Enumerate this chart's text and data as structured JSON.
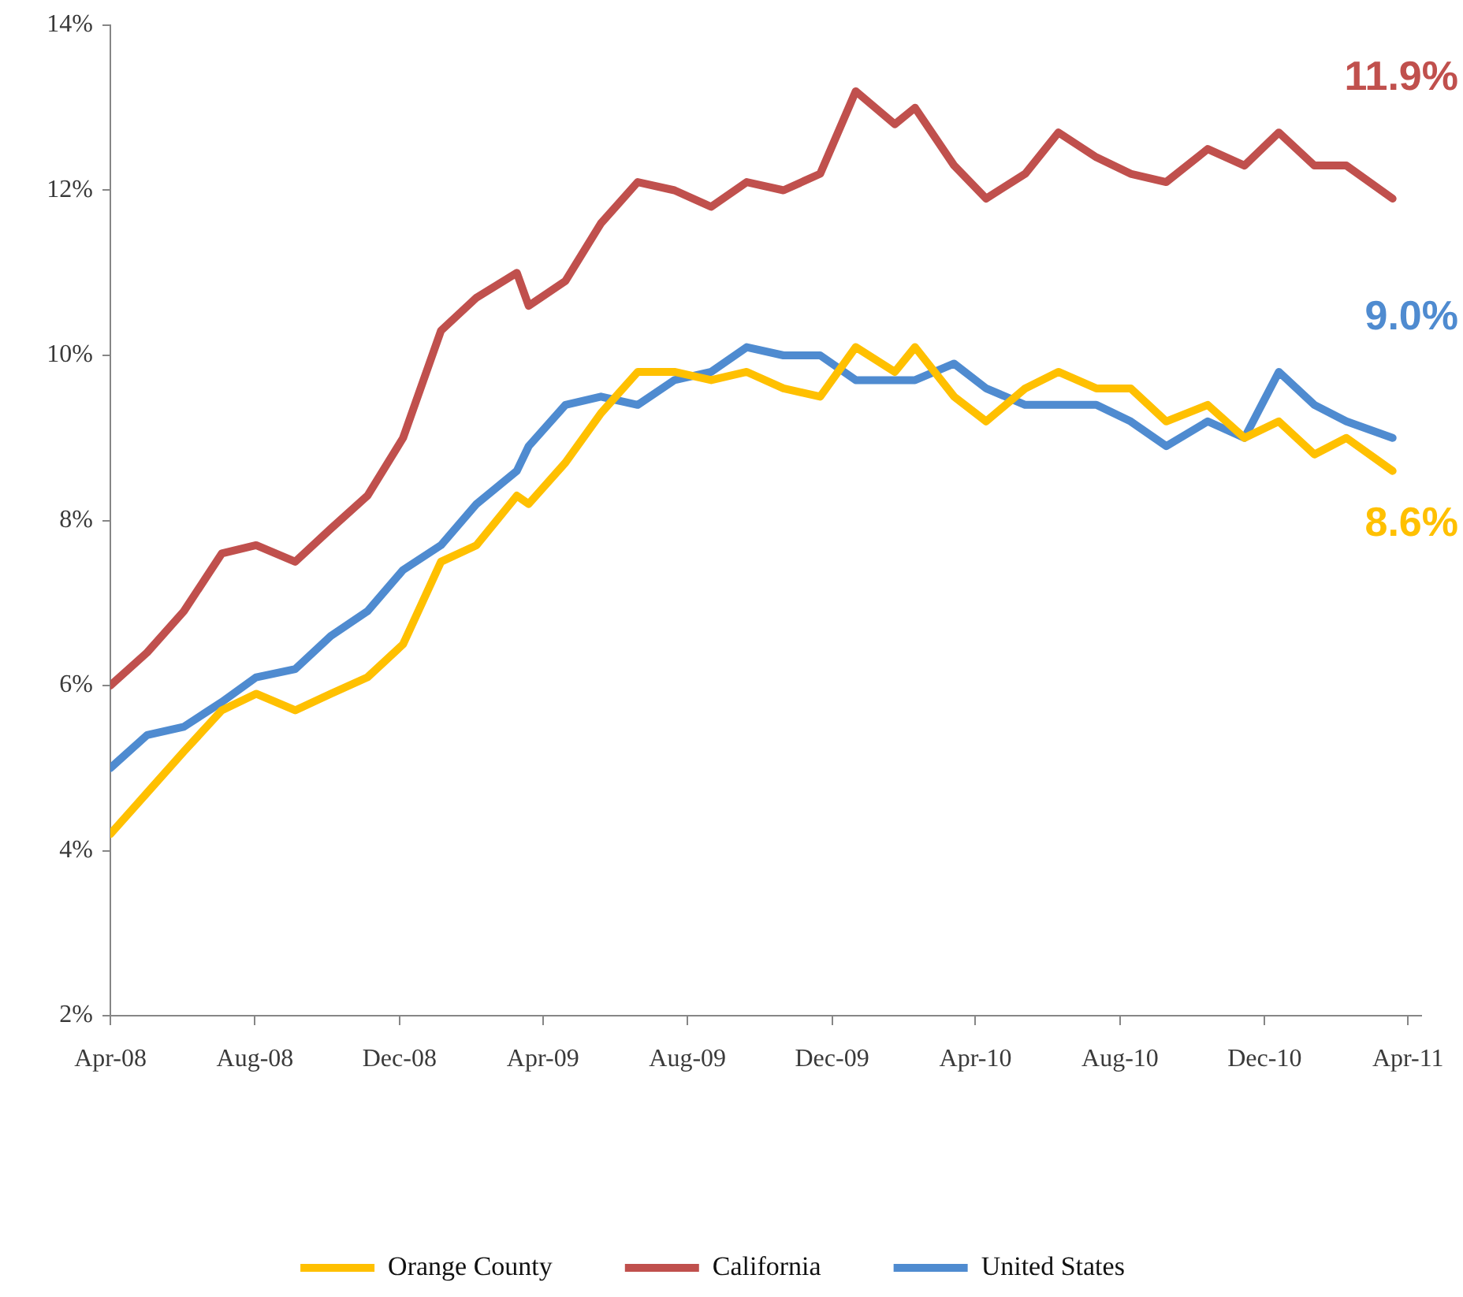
{
  "chart_data": {
    "type": "line",
    "x": [
      "2008-04-01",
      "2008-05-02",
      "2008-06-02",
      "2008-07-04",
      "2008-08-02",
      "2008-09-04",
      "2008-10-04",
      "2008-11-04",
      "2008-12-04",
      "2009-01-05",
      "2009-02-04",
      "2009-03-10",
      "2009-03-20",
      "2009-04-20",
      "2009-05-20",
      "2009-06-20",
      "2009-07-21",
      "2009-08-21",
      "2009-09-20",
      "2009-10-21",
      "2009-11-21",
      "2009-12-21",
      "2010-01-23",
      "2010-02-09",
      "2010-03-14",
      "2010-04-10",
      "2010-05-13",
      "2010-06-10",
      "2010-07-12",
      "2010-08-10",
      "2010-09-09",
      "2010-10-14",
      "2010-11-14",
      "2010-12-13",
      "2011-01-12",
      "2011-02-08",
      "2011-03-19"
    ],
    "series": [
      {
        "name": "Orange County",
        "color": "#ffc000",
        "values": [
          4.2,
          4.7,
          5.2,
          5.7,
          5.9,
          5.7,
          5.9,
          6.1,
          6.5,
          7.5,
          7.7,
          8.3,
          8.2,
          8.7,
          9.3,
          9.8,
          9.8,
          9.7,
          9.8,
          9.6,
          9.5,
          10.1,
          9.8,
          10.1,
          9.5,
          9.2,
          9.6,
          9.8,
          9.6,
          9.6,
          9.2,
          9.4,
          9.0,
          9.2,
          8.8,
          9.0,
          8.6
        ],
        "value_labels": [
          null,
          null,
          null,
          null,
          null,
          null,
          null,
          null,
          null,
          null,
          null,
          null,
          null,
          null,
          null,
          null,
          null,
          null,
          null,
          null,
          null,
          null,
          null,
          null,
          null,
          null,
          null,
          null,
          null,
          null,
          null,
          null,
          null,
          null,
          null,
          null,
          "8.6%"
        ]
      },
      {
        "name": "California",
        "color": "#c0504d",
        "values": [
          6.0,
          6.4,
          6.9,
          7.6,
          7.7,
          7.5,
          7.9,
          8.3,
          9.0,
          10.3,
          10.7,
          11.0,
          10.6,
          10.9,
          11.6,
          12.1,
          12.0,
          11.8,
          12.1,
          12.0,
          12.2,
          13.2,
          12.8,
          13.0,
          12.3,
          11.9,
          12.2,
          12.7,
          12.4,
          12.2,
          12.1,
          12.5,
          12.3,
          12.7,
          12.3,
          12.3,
          11.9
        ],
        "value_labels": [
          null,
          null,
          null,
          null,
          null,
          null,
          null,
          null,
          null,
          null,
          null,
          null,
          null,
          null,
          null,
          null,
          null,
          null,
          null,
          null,
          null,
          null,
          null,
          null,
          null,
          null,
          null,
          null,
          null,
          null,
          null,
          null,
          null,
          null,
          null,
          null,
          "11.9%"
        ]
      },
      {
        "name": "United States",
        "color": "#4f8bd0",
        "values": [
          5.0,
          5.4,
          5.5,
          5.8,
          6.1,
          6.2,
          6.6,
          6.9,
          7.4,
          7.7,
          8.2,
          8.6,
          8.9,
          9.4,
          9.5,
          9.4,
          9.7,
          9.8,
          10.1,
          10.0,
          10.0,
          9.7,
          9.7,
          9.7,
          9.9,
          9.6,
          9.4,
          9.4,
          9.4,
          9.2,
          8.9,
          9.2,
          9.0,
          9.8,
          9.4,
          9.2,
          9.0
        ],
        "value_labels": [
          null,
          null,
          null,
          null,
          null,
          null,
          null,
          null,
          null,
          null,
          null,
          null,
          null,
          null,
          null,
          null,
          null,
          null,
          null,
          null,
          null,
          null,
          null,
          null,
          null,
          null,
          null,
          null,
          null,
          null,
          null,
          null,
          null,
          null,
          null,
          null,
          "9.0%"
        ]
      }
    ],
    "xlim": [
      "2008-04-01",
      "2011-04-12"
    ],
    "xticks": [
      {
        "value": "2008-04",
        "label": "Apr-08"
      },
      {
        "value": "2008-08",
        "label": "Aug-08"
      },
      {
        "value": "2008-12",
        "label": "Dec-08"
      },
      {
        "value": "2009-04",
        "label": "Apr-09"
      },
      {
        "value": "2009-08",
        "label": "Aug-09"
      },
      {
        "value": "2009-12",
        "label": "Dec-09"
      },
      {
        "value": "2010-04",
        "label": "Apr-10"
      },
      {
        "value": "2010-08",
        "label": "Aug-10"
      },
      {
        "value": "2010-12",
        "label": "Dec-10"
      },
      {
        "value": "2011-04",
        "label": "Apr-11"
      }
    ],
    "ylim": [
      2,
      14
    ],
    "yticks": [
      {
        "value": 2,
        "label": "2%"
      },
      {
        "value": 4,
        "label": "4%"
      },
      {
        "value": 6,
        "label": "6%"
      },
      {
        "value": 8,
        "label": "8%"
      },
      {
        "value": 10,
        "label": "10%"
      },
      {
        "value": 12,
        "label": "12%"
      },
      {
        "value": 14,
        "label": "14%"
      }
    ],
    "legend": "bottom"
  }
}
